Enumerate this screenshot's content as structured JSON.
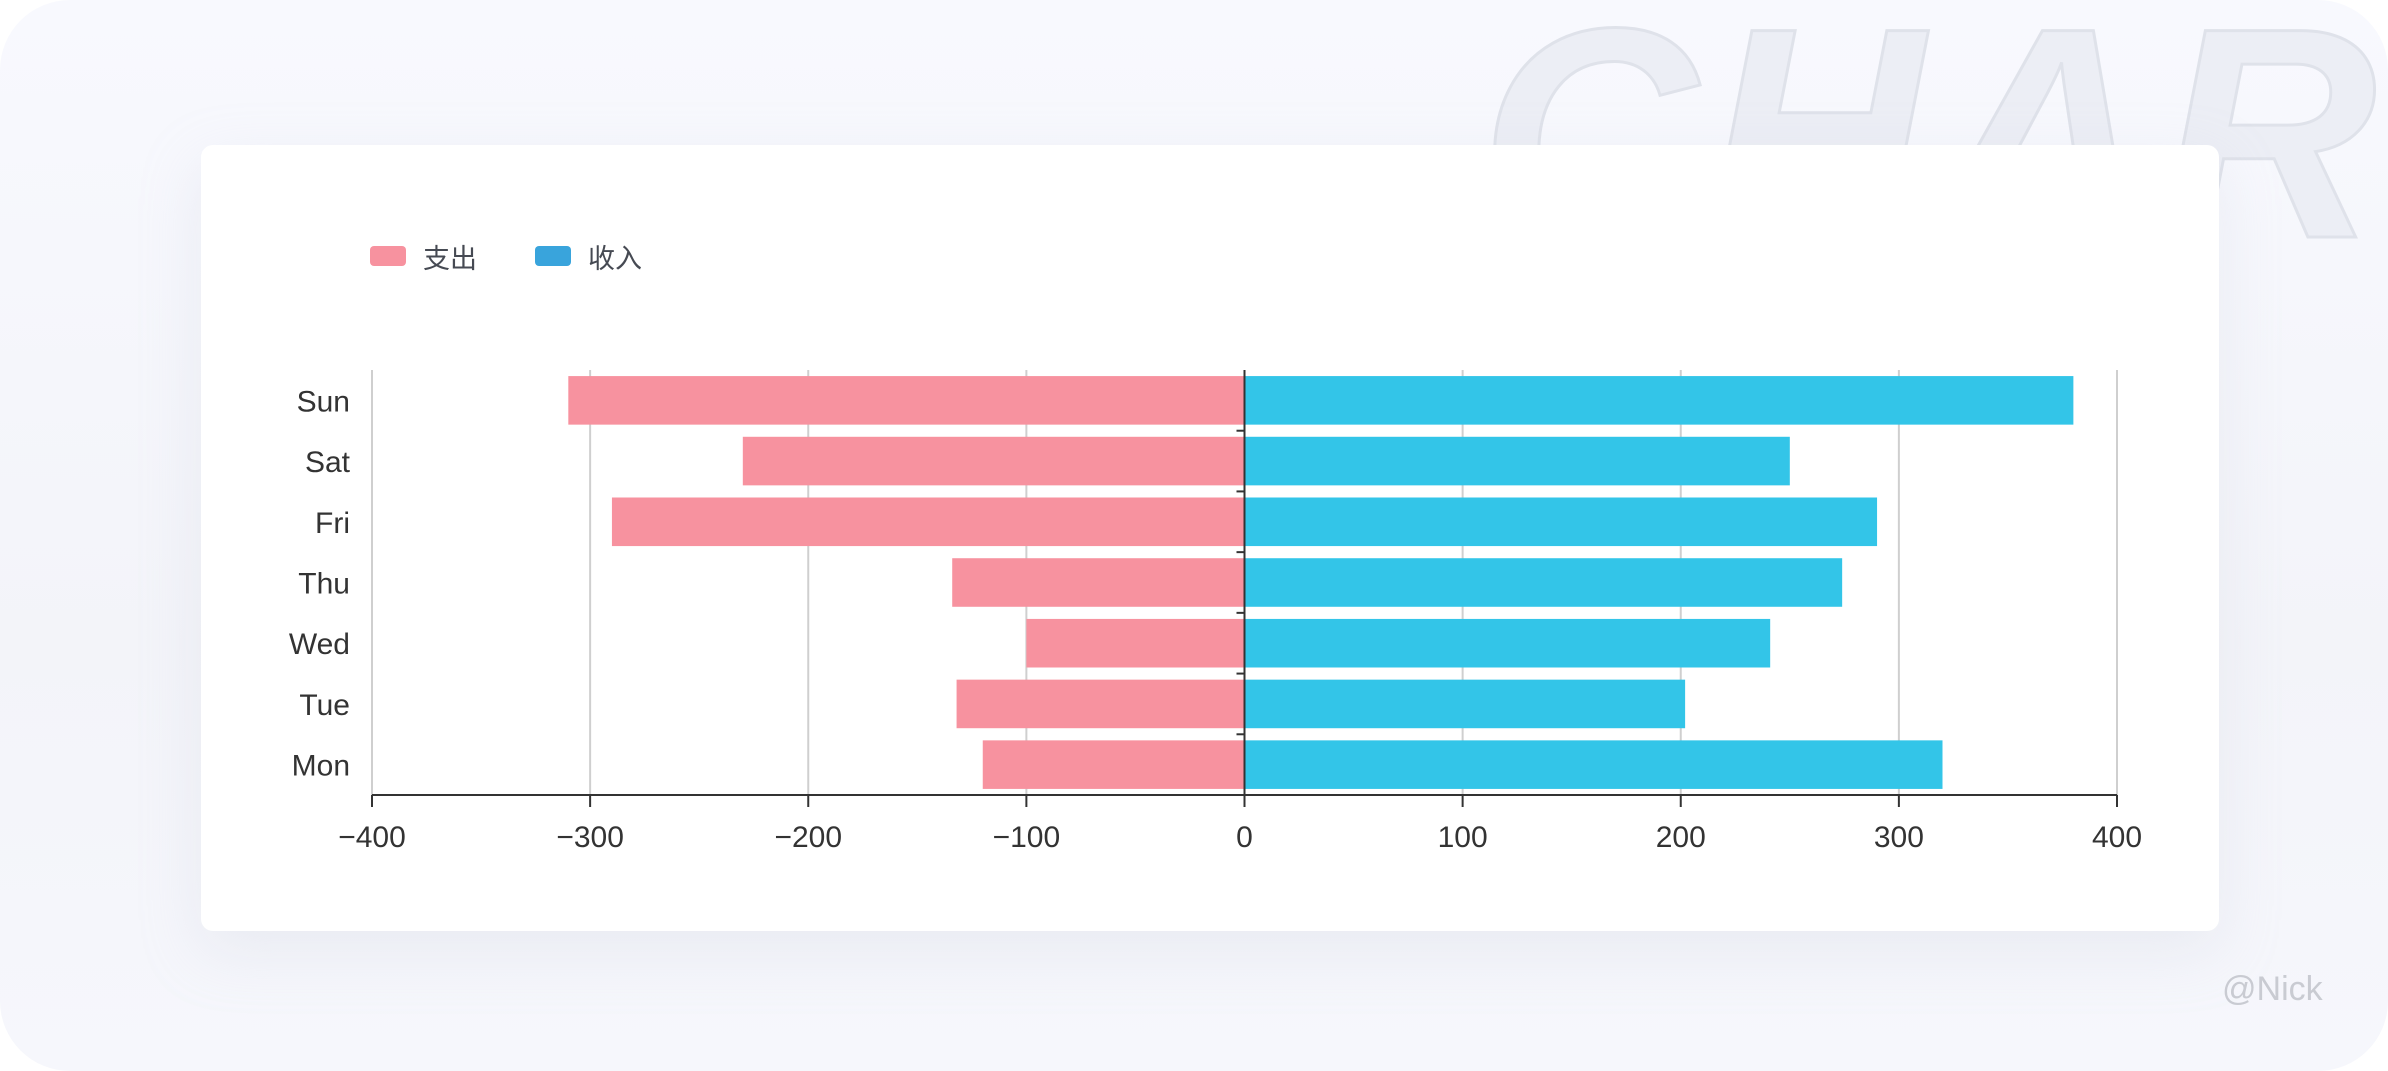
{
  "watermark": "CHART",
  "signature": "@Nick",
  "chart_data": {
    "type": "bar",
    "orientation": "horizontal",
    "stacked": true,
    "categories": [
      "Mon",
      "Tue",
      "Wed",
      "Thu",
      "Fri",
      "Sat",
      "Sun"
    ],
    "series": [
      {
        "name": "支出",
        "color": "#f7929f",
        "values": [
          -120,
          -132,
          -100,
          -134,
          -290,
          -230,
          -310
        ]
      },
      {
        "name": "收入",
        "color": "#33c5e8",
        "legend_color": "#39a4dc",
        "values": [
          320,
          202,
          241,
          274,
          290,
          250,
          380
        ]
      }
    ],
    "xlim": [
      -400,
      400
    ],
    "xticks": [
      "−400",
      "−300",
      "−200",
      "−100",
      "0",
      "100",
      "200",
      "300",
      "400"
    ],
    "xtick_values": [
      -400,
      -300,
      -200,
      -100,
      0,
      100,
      200,
      300,
      400
    ],
    "grid": true,
    "legend_position": "top-left"
  }
}
